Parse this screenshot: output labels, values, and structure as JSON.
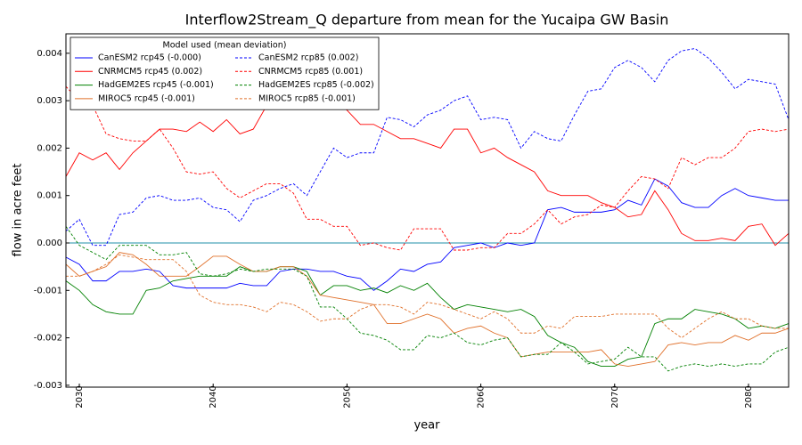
{
  "chart_data": {
    "type": "line",
    "title": "Interflow2Stream_Q departure from mean for the Yucaipa GW Basin",
    "x_label": "year",
    "y_label": "flow in acre feet",
    "legend_title": "Model used (mean deviation)",
    "legend": "upper left",
    "reference_line": {
      "value": 0,
      "color": "#1f8fa8"
    },
    "xlim": [
      2029,
      2083
    ],
    "ylim": [
      -0.00304,
      0.00441
    ],
    "xticks": [
      2030,
      2040,
      2050,
      2060,
      2070,
      2080
    ],
    "yticks": [
      -0.003,
      -0.002,
      -0.001,
      {
        "value": 0,
        "label": "0.000"
      },
      0.001,
      0.002,
      0.003,
      0.004
    ],
    "x": [
      2029,
      2030,
      2031,
      2032,
      2033,
      2034,
      2035,
      2036,
      2037,
      2038,
      2039,
      2040,
      2041,
      2042,
      2043,
      2044,
      2045,
      2046,
      2047,
      2048,
      2049,
      2050,
      2051,
      2052,
      2053,
      2054,
      2055,
      2056,
      2057,
      2058,
      2059,
      2060,
      2061,
      2062,
      2063,
      2064,
      2065,
      2066,
      2067,
      2068,
      2069,
      2070,
      2071,
      2072,
      2073,
      2074,
      2075,
      2076,
      2077,
      2078,
      2079,
      2080,
      2081,
      2082,
      2083
    ],
    "series": [
      {
        "name": "CanESM2 rcp45 (-0.000)",
        "color": "#0000ff",
        "dashed": false,
        "values": [
          -0.0003,
          -0.00045,
          -0.0008,
          -0.0008,
          -0.0006,
          -0.0006,
          -0.00055,
          -0.0006,
          -0.0009,
          -0.00095,
          -0.00095,
          -0.00095,
          -0.00095,
          -0.00085,
          -0.0009,
          -0.0009,
          -0.0006,
          -0.00055,
          -0.00055,
          -0.0006,
          -0.0006,
          -0.0007,
          -0.00075,
          -0.001,
          -0.0008,
          -0.00055,
          -0.0006,
          -0.00045,
          -0.0004,
          -0.0001,
          -5e-05,
          0.0,
          -0.0001,
          0.0,
          -5e-05,
          0.0,
          0.0007,
          0.00075,
          0.00065,
          0.00065,
          0.00065,
          0.0007,
          0.0009,
          0.0008,
          0.00135,
          0.0012,
          0.00085,
          0.00075,
          0.00075,
          0.001,
          0.00115,
          0.001,
          0.00095,
          0.0009,
          0.0009
        ]
      },
      {
        "name": "CNRMCM5 rcp45 (0.002)",
        "color": "#ff0000",
        "dashed": false,
        "values": [
          0.0014,
          0.0019,
          0.00175,
          0.0019,
          0.00155,
          0.0019,
          0.00215,
          0.0024,
          0.0024,
          0.00235,
          0.00255,
          0.00235,
          0.0026,
          0.0023,
          0.0024,
          0.0029,
          0.0033,
          0.0034,
          0.0034,
          0.0033,
          0.0031,
          0.0028,
          0.0025,
          0.0025,
          0.00235,
          0.0022,
          0.0022,
          0.0021,
          0.002,
          0.0024,
          0.0024,
          0.0019,
          0.002,
          0.0018,
          0.00165,
          0.0015,
          0.0011,
          0.001,
          0.001,
          0.001,
          0.00085,
          0.00075,
          0.00055,
          0.0006,
          0.0011,
          0.0007,
          0.0002,
          5e-05,
          5e-05,
          0.0001,
          5e-05,
          0.00035,
          0.0004,
          -5e-05,
          0.0002
        ]
      },
      {
        "name": "HadGEM2ES rcp45 (-0.001)",
        "color": "#008000",
        "dashed": false,
        "values": [
          -0.0008,
          -0.001,
          -0.0013,
          -0.00145,
          -0.0015,
          -0.0015,
          -0.001,
          -0.00095,
          -0.0008,
          -0.00075,
          -0.0007,
          -0.0007,
          -0.0007,
          -0.0005,
          -0.0006,
          -0.0006,
          -0.0005,
          -0.0005,
          -0.0006,
          -0.0011,
          -0.0009,
          -0.0009,
          -0.001,
          -0.00095,
          -0.00105,
          -0.0009,
          -0.001,
          -0.00085,
          -0.00115,
          -0.0014,
          -0.0013,
          -0.00135,
          -0.0014,
          -0.00145,
          -0.0014,
          -0.00155,
          -0.00195,
          -0.0021,
          -0.0022,
          -0.0025,
          -0.0026,
          -0.0026,
          -0.00245,
          -0.0024,
          -0.0017,
          -0.0016,
          -0.0016,
          -0.0014,
          -0.00145,
          -0.0015,
          -0.0016,
          -0.0018,
          -0.00175,
          -0.0018,
          -0.0017
        ]
      },
      {
        "name": "MIROC5 rcp45 (-0.001)",
        "color": "#e0702a",
        "dashed": false,
        "values": [
          -0.00045,
          -0.0007,
          -0.0006,
          -0.0005,
          -0.0002,
          -0.00025,
          -0.00045,
          -0.0007,
          -0.0007,
          -0.0007,
          -0.0005,
          -0.00028,
          -0.00028,
          -0.00045,
          -0.0006,
          -0.0006,
          -0.0005,
          -0.0005,
          -0.0007,
          -0.0011,
          -0.00115,
          -0.0012,
          -0.00125,
          -0.0013,
          -0.0017,
          -0.0017,
          -0.0016,
          -0.0015,
          -0.0016,
          -0.0019,
          -0.0018,
          -0.00175,
          -0.0019,
          -0.002,
          -0.0024,
          -0.00235,
          -0.0023,
          -0.0023,
          -0.0023,
          -0.0023,
          -0.00225,
          -0.00255,
          -0.0026,
          -0.00255,
          -0.0025,
          -0.00215,
          -0.0021,
          -0.00215,
          -0.0021,
          -0.0021,
          -0.00195,
          -0.00205,
          -0.0019,
          -0.0019,
          -0.0018
        ]
      },
      {
        "name": "CanESM2 rcp85 (0.002)",
        "color": "#0000ff",
        "dashed": true,
        "values": [
          0.00025,
          0.0005,
          -5e-05,
          -5e-05,
          0.0006,
          0.00065,
          0.00095,
          0.001,
          0.0009,
          0.0009,
          0.00095,
          0.00075,
          0.0007,
          0.00045,
          0.0009,
          0.001,
          0.00115,
          0.00125,
          0.001,
          0.0015,
          0.002,
          0.0018,
          0.0019,
          0.0019,
          0.00265,
          0.0026,
          0.00245,
          0.0027,
          0.0028,
          0.003,
          0.0031,
          0.0026,
          0.00265,
          0.0026,
          0.002,
          0.00235,
          0.0022,
          0.00215,
          0.0027,
          0.0032,
          0.00325,
          0.0037,
          0.00385,
          0.0037,
          0.0034,
          0.00385,
          0.00405,
          0.0041,
          0.0039,
          0.0036,
          0.00325,
          0.00345,
          0.0034,
          0.00335,
          0.0026
        ]
      },
      {
        "name": "CNRMCM5 rcp85 (0.001)",
        "color": "#ff0000",
        "dashed": true,
        "values": [
          0.0033,
          0.003,
          0.0029,
          0.0023,
          0.0022,
          0.00215,
          0.00215,
          0.0024,
          0.002,
          0.0015,
          0.00145,
          0.0015,
          0.00115,
          0.00095,
          0.0011,
          0.00125,
          0.00125,
          0.00105,
          0.0005,
          0.0005,
          0.00035,
          0.00035,
          -5e-05,
          0.0,
          -0.0001,
          -0.00015,
          0.0003,
          0.0003,
          0.0003,
          -0.00015,
          -0.00015,
          -0.0001,
          -0.0001,
          0.0002,
          0.0002,
          0.0004,
          0.0007,
          0.0004,
          0.00055,
          0.0006,
          0.0008,
          0.00075,
          0.0011,
          0.0014,
          0.00135,
          0.00115,
          0.0018,
          0.00165,
          0.0018,
          0.0018,
          0.002,
          0.00235,
          0.0024,
          0.00235,
          0.0024
        ]
      },
      {
        "name": "HadGEM2ES rcp85 (-0.002)",
        "color": "#008000",
        "dashed": true,
        "values": [
          0.00035,
          -5e-05,
          -0.0002,
          -0.00035,
          -5e-05,
          -5e-05,
          -5e-05,
          -0.00025,
          -0.00025,
          -0.0002,
          -0.00065,
          -0.0007,
          -0.00065,
          -0.00055,
          -0.0006,
          -0.00055,
          -0.00055,
          -0.00055,
          -0.0007,
          -0.00135,
          -0.00135,
          -0.0016,
          -0.0019,
          -0.00195,
          -0.00205,
          -0.00225,
          -0.00225,
          -0.00195,
          -0.002,
          -0.0019,
          -0.0021,
          -0.00215,
          -0.00205,
          -0.002,
          -0.0024,
          -0.00235,
          -0.00235,
          -0.0021,
          -0.0023,
          -0.00255,
          -0.0025,
          -0.00245,
          -0.0022,
          -0.0024,
          -0.0024,
          -0.0027,
          -0.0026,
          -0.00255,
          -0.0026,
          -0.00255,
          -0.0026,
          -0.00255,
          -0.00255,
          -0.0023,
          -0.0022
        ]
      },
      {
        "name": "MIROC5 rcp85 (-0.001)",
        "color": "#e0702a",
        "dashed": true,
        "values": [
          -0.0007,
          -0.0007,
          -0.0006,
          -0.00045,
          -0.00025,
          -0.0003,
          -0.00035,
          -0.00035,
          -0.00035,
          -0.0006,
          -0.0011,
          -0.00125,
          -0.0013,
          -0.0013,
          -0.00135,
          -0.00145,
          -0.00125,
          -0.0013,
          -0.00145,
          -0.00165,
          -0.0016,
          -0.0016,
          -0.0014,
          -0.0013,
          -0.0013,
          -0.00135,
          -0.0015,
          -0.00125,
          -0.0013,
          -0.0014,
          -0.0015,
          -0.0016,
          -0.00145,
          -0.0016,
          -0.0019,
          -0.0019,
          -0.00175,
          -0.0018,
          -0.00155,
          -0.00155,
          -0.00155,
          -0.0015,
          -0.0015,
          -0.0015,
          -0.0015,
          -0.0018,
          -0.002,
          -0.0018,
          -0.0016,
          -0.00145,
          -0.0016,
          -0.0016,
          -0.00175,
          -0.0018,
          -0.0018
        ]
      }
    ]
  }
}
